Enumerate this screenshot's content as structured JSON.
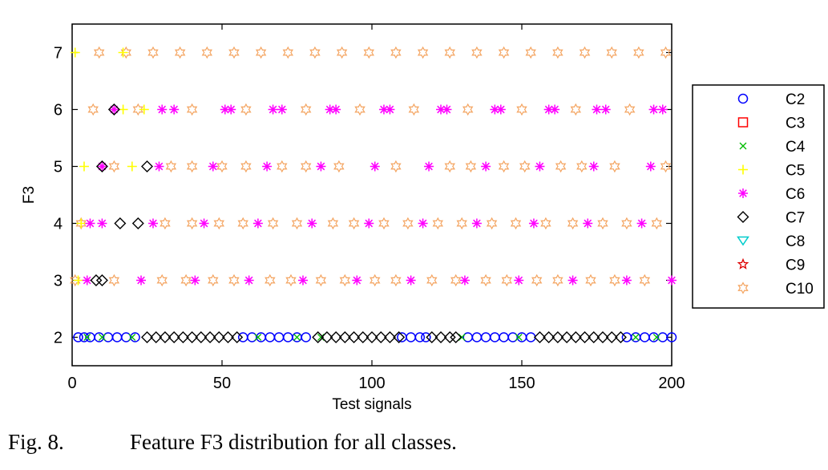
{
  "chart_data": {
    "type": "scatter",
    "title": "",
    "xlabel": "Test signals",
    "ylabel": "F3",
    "xlim": [
      0,
      200
    ],
    "ylim": [
      1.5,
      7.5
    ],
    "x_ticks": [
      "0",
      "50",
      "100",
      "150",
      "200"
    ],
    "y_ticks": [
      "2",
      "3",
      "4",
      "5",
      "6",
      "7"
    ],
    "grid": false,
    "legend_position": "outside-right",
    "series": [
      {
        "name": "C2",
        "color": "#0000ff",
        "marker": "circle",
        "y": 2,
        "x": [
          2,
          4,
          6,
          9,
          12,
          15,
          18,
          21,
          57,
          60,
          63,
          66,
          69,
          72,
          75,
          78,
          110,
          113,
          116,
          118,
          132,
          135,
          138,
          141,
          144,
          147,
          150,
          153,
          185,
          188,
          191,
          194,
          197,
          200
        ]
      },
      {
        "name": "C3",
        "color": "#ff0000",
        "marker": "square",
        "y": null,
        "x": []
      },
      {
        "name": "C4",
        "color": "#00bb00",
        "marker": "x",
        "y": 2,
        "x": [
          5,
          10,
          20,
          62,
          75,
          83,
          130,
          149,
          188,
          195
        ]
      },
      {
        "name": "C5",
        "color": "#ffff00",
        "marker": "plus",
        "points": [
          {
            "x": 1,
            "y": 7
          },
          {
            "x": 17,
            "y": 7
          },
          {
            "x": 17,
            "y": 6
          },
          {
            "x": 24,
            "y": 6
          },
          {
            "x": 4,
            "y": 5
          },
          {
            "x": 20,
            "y": 5
          },
          {
            "x": 3,
            "y": 4
          },
          {
            "x": 2,
            "y": 3
          }
        ]
      },
      {
        "name": "C6",
        "color": "#ff00ff",
        "marker": "asterisk",
        "points": [
          {
            "x": 14,
            "y": 6
          },
          {
            "x": 30,
            "y": 6
          },
          {
            "x": 34,
            "y": 6
          },
          {
            "x": 51,
            "y": 6
          },
          {
            "x": 53,
            "y": 6
          },
          {
            "x": 67,
            "y": 6
          },
          {
            "x": 70,
            "y": 6
          },
          {
            "x": 86,
            "y": 6
          },
          {
            "x": 88,
            "y": 6
          },
          {
            "x": 104,
            "y": 6
          },
          {
            "x": 106,
            "y": 6
          },
          {
            "x": 123,
            "y": 6
          },
          {
            "x": 125,
            "y": 6
          },
          {
            "x": 141,
            "y": 6
          },
          {
            "x": 143,
            "y": 6
          },
          {
            "x": 159,
            "y": 6
          },
          {
            "x": 161,
            "y": 6
          },
          {
            "x": 175,
            "y": 6
          },
          {
            "x": 178,
            "y": 6
          },
          {
            "x": 194,
            "y": 6
          },
          {
            "x": 197,
            "y": 6
          },
          {
            "x": 10,
            "y": 5
          },
          {
            "x": 29,
            "y": 5
          },
          {
            "x": 47,
            "y": 5
          },
          {
            "x": 65,
            "y": 5
          },
          {
            "x": 83,
            "y": 5
          },
          {
            "x": 101,
            "y": 5
          },
          {
            "x": 119,
            "y": 5
          },
          {
            "x": 138,
            "y": 5
          },
          {
            "x": 156,
            "y": 5
          },
          {
            "x": 174,
            "y": 5
          },
          {
            "x": 193,
            "y": 5
          },
          {
            "x": 6,
            "y": 4
          },
          {
            "x": 10,
            "y": 4
          },
          {
            "x": 27,
            "y": 4
          },
          {
            "x": 44,
            "y": 4
          },
          {
            "x": 62,
            "y": 4
          },
          {
            "x": 80,
            "y": 4
          },
          {
            "x": 99,
            "y": 4
          },
          {
            "x": 117,
            "y": 4
          },
          {
            "x": 135,
            "y": 4
          },
          {
            "x": 154,
            "y": 4
          },
          {
            "x": 172,
            "y": 4
          },
          {
            "x": 190,
            "y": 4
          },
          {
            "x": 5,
            "y": 3
          },
          {
            "x": 23,
            "y": 3
          },
          {
            "x": 41,
            "y": 3
          },
          {
            "x": 59,
            "y": 3
          },
          {
            "x": 77,
            "y": 3
          },
          {
            "x": 95,
            "y": 3
          },
          {
            "x": 113,
            "y": 3
          },
          {
            "x": 131,
            "y": 3
          },
          {
            "x": 149,
            "y": 3
          },
          {
            "x": 167,
            "y": 3
          },
          {
            "x": 185,
            "y": 3
          },
          {
            "x": 200,
            "y": 3
          }
        ]
      },
      {
        "name": "C7",
        "color": "#000000",
        "marker": "diamond",
        "points": [
          {
            "x": 14,
            "y": 6
          },
          {
            "x": 10,
            "y": 5
          },
          {
            "x": 25,
            "y": 5
          },
          {
            "x": 16,
            "y": 4
          },
          {
            "x": 22,
            "y": 4
          },
          {
            "x": 8,
            "y": 3
          },
          {
            "x": 10,
            "y": 3
          },
          {
            "x": 25,
            "y": 2
          },
          {
            "x": 28,
            "y": 2
          },
          {
            "x": 31,
            "y": 2
          },
          {
            "x": 34,
            "y": 2
          },
          {
            "x": 37,
            "y": 2
          },
          {
            "x": 40,
            "y": 2
          },
          {
            "x": 43,
            "y": 2
          },
          {
            "x": 46,
            "y": 2
          },
          {
            "x": 49,
            "y": 2
          },
          {
            "x": 52,
            "y": 2
          },
          {
            "x": 55,
            "y": 2
          },
          {
            "x": 82,
            "y": 2
          },
          {
            "x": 85,
            "y": 2
          },
          {
            "x": 88,
            "y": 2
          },
          {
            "x": 91,
            "y": 2
          },
          {
            "x": 94,
            "y": 2
          },
          {
            "x": 97,
            "y": 2
          },
          {
            "x": 100,
            "y": 2
          },
          {
            "x": 103,
            "y": 2
          },
          {
            "x": 106,
            "y": 2
          },
          {
            "x": 109,
            "y": 2
          },
          {
            "x": 120,
            "y": 2
          },
          {
            "x": 123,
            "y": 2
          },
          {
            "x": 126,
            "y": 2
          },
          {
            "x": 128,
            "y": 2
          },
          {
            "x": 156,
            "y": 2
          },
          {
            "x": 159,
            "y": 2
          },
          {
            "x": 162,
            "y": 2
          },
          {
            "x": 165,
            "y": 2
          },
          {
            "x": 168,
            "y": 2
          },
          {
            "x": 171,
            "y": 2
          },
          {
            "x": 174,
            "y": 2
          },
          {
            "x": 177,
            "y": 2
          },
          {
            "x": 180,
            "y": 2
          },
          {
            "x": 183,
            "y": 2
          }
        ]
      },
      {
        "name": "C8",
        "color": "#00cccc",
        "marker": "triangle-down",
        "y": null,
        "x": []
      },
      {
        "name": "C9",
        "color": "#dd0000",
        "marker": "pentagram",
        "y": null,
        "x": []
      },
      {
        "name": "C10",
        "color": "#f4a460",
        "marker": "hexagram",
        "points": [
          {
            "x": 9,
            "y": 7
          },
          {
            "x": 18,
            "y": 7
          },
          {
            "x": 27,
            "y": 7
          },
          {
            "x": 36,
            "y": 7
          },
          {
            "x": 45,
            "y": 7
          },
          {
            "x": 54,
            "y": 7
          },
          {
            "x": 63,
            "y": 7
          },
          {
            "x": 72,
            "y": 7
          },
          {
            "x": 81,
            "y": 7
          },
          {
            "x": 90,
            "y": 7
          },
          {
            "x": 99,
            "y": 7
          },
          {
            "x": 108,
            "y": 7
          },
          {
            "x": 117,
            "y": 7
          },
          {
            "x": 126,
            "y": 7
          },
          {
            "x": 135,
            "y": 7
          },
          {
            "x": 144,
            "y": 7
          },
          {
            "x": 153,
            "y": 7
          },
          {
            "x": 162,
            "y": 7
          },
          {
            "x": 171,
            "y": 7
          },
          {
            "x": 180,
            "y": 7
          },
          {
            "x": 189,
            "y": 7
          },
          {
            "x": 198,
            "y": 7
          },
          {
            "x": 7,
            "y": 6
          },
          {
            "x": 22,
            "y": 6
          },
          {
            "x": 40,
            "y": 6
          },
          {
            "x": 58,
            "y": 6
          },
          {
            "x": 78,
            "y": 6
          },
          {
            "x": 96,
            "y": 6
          },
          {
            "x": 114,
            "y": 6
          },
          {
            "x": 132,
            "y": 6
          },
          {
            "x": 150,
            "y": 6
          },
          {
            "x": 168,
            "y": 6
          },
          {
            "x": 186,
            "y": 6
          },
          {
            "x": 14,
            "y": 5
          },
          {
            "x": 33,
            "y": 5
          },
          {
            "x": 40,
            "y": 5
          },
          {
            "x": 50,
            "y": 5
          },
          {
            "x": 58,
            "y": 5
          },
          {
            "x": 70,
            "y": 5
          },
          {
            "x": 78,
            "y": 5
          },
          {
            "x": 89,
            "y": 5
          },
          {
            "x": 108,
            "y": 5
          },
          {
            "x": 126,
            "y": 5
          },
          {
            "x": 133,
            "y": 5
          },
          {
            "x": 144,
            "y": 5
          },
          {
            "x": 151,
            "y": 5
          },
          {
            "x": 163,
            "y": 5
          },
          {
            "x": 170,
            "y": 5
          },
          {
            "x": 181,
            "y": 5
          },
          {
            "x": 198,
            "y": 5
          },
          {
            "x": 3,
            "y": 4
          },
          {
            "x": 31,
            "y": 4
          },
          {
            "x": 40,
            "y": 4
          },
          {
            "x": 49,
            "y": 4
          },
          {
            "x": 57,
            "y": 4
          },
          {
            "x": 67,
            "y": 4
          },
          {
            "x": 75,
            "y": 4
          },
          {
            "x": 87,
            "y": 4
          },
          {
            "x": 94,
            "y": 4
          },
          {
            "x": 104,
            "y": 4
          },
          {
            "x": 112,
            "y": 4
          },
          {
            "x": 122,
            "y": 4
          },
          {
            "x": 130,
            "y": 4
          },
          {
            "x": 140,
            "y": 4
          },
          {
            "x": 148,
            "y": 4
          },
          {
            "x": 158,
            "y": 4
          },
          {
            "x": 167,
            "y": 4
          },
          {
            "x": 177,
            "y": 4
          },
          {
            "x": 185,
            "y": 4
          },
          {
            "x": 195,
            "y": 4
          },
          {
            "x": 1,
            "y": 3
          },
          {
            "x": 14,
            "y": 3
          },
          {
            "x": 30,
            "y": 3
          },
          {
            "x": 38,
            "y": 3
          },
          {
            "x": 47,
            "y": 3
          },
          {
            "x": 54,
            "y": 3
          },
          {
            "x": 66,
            "y": 3
          },
          {
            "x": 73,
            "y": 3
          },
          {
            "x": 83,
            "y": 3
          },
          {
            "x": 91,
            "y": 3
          },
          {
            "x": 101,
            "y": 3
          },
          {
            "x": 108,
            "y": 3
          },
          {
            "x": 120,
            "y": 3
          },
          {
            "x": 128,
            "y": 3
          },
          {
            "x": 138,
            "y": 3
          },
          {
            "x": 145,
            "y": 3
          },
          {
            "x": 155,
            "y": 3
          },
          {
            "x": 162,
            "y": 3
          },
          {
            "x": 173,
            "y": 3
          },
          {
            "x": 181,
            "y": 3
          },
          {
            "x": 191,
            "y": 3
          }
        ]
      }
    ]
  },
  "caption": {
    "number": "Fig. 8.",
    "text": "Feature F3 distribution for all classes."
  }
}
